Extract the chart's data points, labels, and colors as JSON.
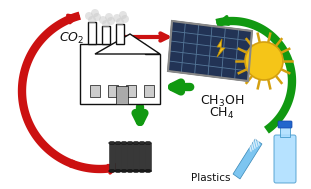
{
  "bg_color": "#ffffff",
  "plastics_label": "Plastics",
  "arrow_red": "#cc1111",
  "arrow_green": "#119911",
  "sun_color": "#f5c518",
  "sun_ray_color": "#d4a010",
  "text_color": "#111111",
  "pipe_color": "#2a2a2a",
  "pipe_body": "#383838",
  "factory_wall": "#ffffff",
  "factory_edge": "#111111",
  "panel_color": "#223355",
  "panel_grid": "#557799",
  "bottle_fill": "#aaddff",
  "bottle_edge": "#4499cc",
  "brush_fill": "#66bbee",
  "brush_edge": "#2277aa",
  "bolt_fill": "#f0c020",
  "smoke_color": "#cccccc"
}
